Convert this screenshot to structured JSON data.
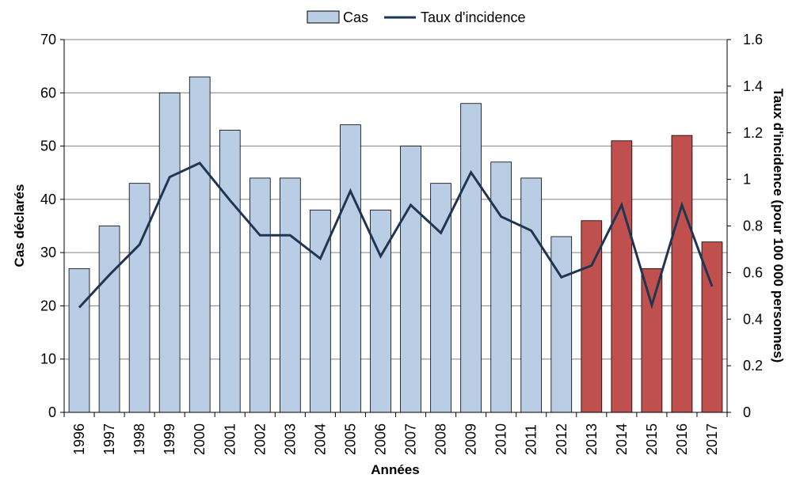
{
  "chart_data": {
    "type": "bar",
    "categories": [
      "1996",
      "1997",
      "1998",
      "1999",
      "2000",
      "2001",
      "2002",
      "2003",
      "2004",
      "2005",
      "2006",
      "2007",
      "2008",
      "2009",
      "2010",
      "2011",
      "2012",
      "2013",
      "2014",
      "2015",
      "2016",
      "2017"
    ],
    "series": [
      {
        "name": "Cas",
        "kind": "bar",
        "axis": "left",
        "values": [
          27,
          35,
          43,
          60,
          63,
          53,
          44,
          44,
          38,
          54,
          38,
          50,
          43,
          58,
          47,
          44,
          33,
          36,
          51,
          27,
          52,
          32
        ],
        "highlight_from_index": 17
      },
      {
        "name": "Taux d'incidence",
        "kind": "line",
        "axis": "right",
        "values": [
          0.45,
          0.59,
          0.72,
          1.01,
          1.07,
          0.91,
          0.76,
          0.76,
          0.66,
          0.95,
          0.67,
          0.89,
          0.77,
          1.03,
          0.84,
          0.78,
          0.58,
          0.63,
          0.89,
          0.46,
          0.89,
          0.54
        ]
      }
    ],
    "colors": {
      "bar": "#b9cde5",
      "bar_highlight": "#c0504d",
      "bar_stroke": "#000000",
      "line": "#1f3552",
      "grid": "#808080"
    },
    "xlabel": "Années",
    "ylabel": "Cas déclarés",
    "y2label": "Taux d'incidence (pour 100 000 personnes)",
    "ylim": [
      0,
      70
    ],
    "y_ticks": [
      0,
      10,
      20,
      30,
      40,
      50,
      60,
      70
    ],
    "y2lim": [
      0,
      1.6
    ],
    "y2_ticks": [
      "0",
      "0.2",
      "0.4",
      "0.6",
      "0.8",
      "1",
      "1.2",
      "1.4",
      "1.6"
    ],
    "grid": true,
    "legend_position": "top-center"
  }
}
